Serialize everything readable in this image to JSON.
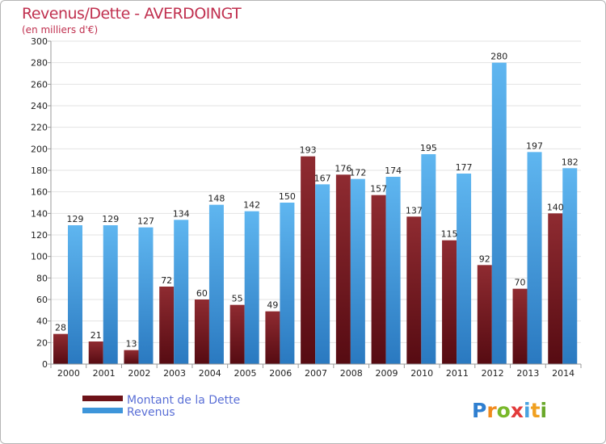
{
  "chart_data": {
    "type": "bar",
    "title": "Revenus/Dette - AVERDOINGT",
    "subtitle": "(en milliers d'€)",
    "xlabel": "",
    "ylabel": "",
    "ylim": [
      0,
      300
    ],
    "ytick_step": 20,
    "grid": true,
    "categories": [
      "2000",
      "2001",
      "2002",
      "2003",
      "2004",
      "2005",
      "2006",
      "2007",
      "2008",
      "2009",
      "2010",
      "2011",
      "2012",
      "2013",
      "2014"
    ],
    "series": [
      {
        "name": "Montant de la Dette",
        "color": "#7b1c22",
        "values": [
          28,
          21,
          13,
          72,
          60,
          55,
          49,
          193,
          176,
          157,
          137,
          115,
          92,
          70,
          140
        ]
      },
      {
        "name": "Revenus",
        "color": "#3e97dc",
        "values": [
          129,
          129,
          127,
          134,
          148,
          142,
          150,
          167,
          172,
          174,
          195,
          177,
          280,
          197,
          182
        ]
      }
    ],
    "legend_position": "bottom-left"
  },
  "logo": {
    "text": "Proxiti",
    "letters": [
      "P",
      "r",
      "o",
      "x",
      "i",
      "t",
      "i"
    ]
  },
  "colors": {
    "title": "#c0304f",
    "debt_light": "#8e2a30",
    "debt_dark": "#5c0e14",
    "rev_light": "#5cb3ef",
    "rev_dark": "#2a7cc2",
    "grid": "#e2e2e2"
  }
}
